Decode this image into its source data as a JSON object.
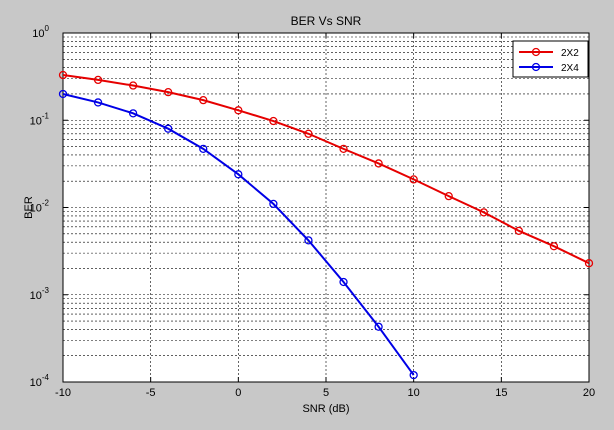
{
  "chart_data": {
    "type": "line",
    "title": "BER Vs SNR",
    "xlabel": "SNR (dB)",
    "ylabel": "BER",
    "xlim": [
      -10,
      20
    ],
    "ylim": [
      0.0001,
      1
    ],
    "yscale": "log",
    "grid": true,
    "legend_position": "top-right",
    "x_ticks": [
      "-10",
      "-5",
      "0",
      "5",
      "10",
      "15",
      "20"
    ],
    "y_ticks": [
      {
        "base": "10",
        "exp": "-4"
      },
      {
        "base": "10",
        "exp": "-3"
      },
      {
        "base": "10",
        "exp": "-2"
      },
      {
        "base": "10",
        "exp": "-1"
      },
      {
        "base": "10",
        "exp": "0"
      }
    ],
    "series": [
      {
        "name": "2X2",
        "color": "#e60000",
        "marker": "circle",
        "x": [
          -10,
          -8,
          -6,
          -4,
          -2,
          0,
          2,
          4,
          6,
          8,
          10,
          12,
          14,
          16,
          18,
          20
        ],
        "y": [
          0.33,
          0.29,
          0.25,
          0.21,
          0.17,
          0.13,
          0.098,
          0.07,
          0.047,
          0.032,
          0.021,
          0.0135,
          0.0088,
          0.0054,
          0.0036,
          0.0023
        ]
      },
      {
        "name": "2X4",
        "color": "#0000e6",
        "marker": "circle",
        "x": [
          -10,
          -8,
          -6,
          -4,
          -2,
          0,
          2,
          4,
          6,
          8,
          10
        ],
        "y": [
          0.2,
          0.16,
          0.12,
          0.08,
          0.047,
          0.024,
          0.011,
          0.0042,
          0.0014,
          0.00043,
          0.00012
        ]
      }
    ]
  }
}
